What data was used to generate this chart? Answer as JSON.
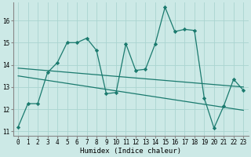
{
  "title": "",
  "xlabel": "Humidex (Indice chaleur)",
  "ylabel": "",
  "xlim": [
    -0.5,
    23.5
  ],
  "ylim": [
    10.8,
    16.8
  ],
  "yticks": [
    11,
    12,
    13,
    14,
    15,
    16
  ],
  "xticks": [
    0,
    1,
    2,
    3,
    4,
    5,
    6,
    7,
    8,
    9,
    10,
    11,
    12,
    13,
    14,
    15,
    16,
    17,
    18,
    19,
    20,
    21,
    22,
    23
  ],
  "bg_color": "#cce9e6",
  "grid_color": "#aad4d0",
  "line_color": "#1a7a6e",
  "line1_x": [
    0,
    1,
    2,
    3,
    4,
    5,
    6,
    7,
    8,
    9,
    10,
    11,
    12,
    13,
    14,
    15,
    16,
    17,
    18,
    19,
    20,
    21,
    22,
    23
  ],
  "line1_y": [
    11.2,
    12.25,
    12.25,
    13.65,
    14.1,
    15.0,
    15.0,
    15.2,
    14.65,
    12.7,
    12.75,
    14.95,
    13.75,
    13.8,
    14.95,
    16.6,
    15.5,
    15.6,
    15.55,
    12.5,
    11.15,
    12.15,
    13.35,
    12.85
  ],
  "line2_x": [
    0,
    23
  ],
  "line2_y": [
    13.85,
    13.0
  ],
  "line3_x": [
    0,
    23
  ],
  "line3_y": [
    13.5,
    11.95
  ],
  "marker": "D",
  "markersize": 2.2,
  "linewidth": 0.9,
  "tick_fontsize": 5.5,
  "xlabel_fontsize": 6.5
}
